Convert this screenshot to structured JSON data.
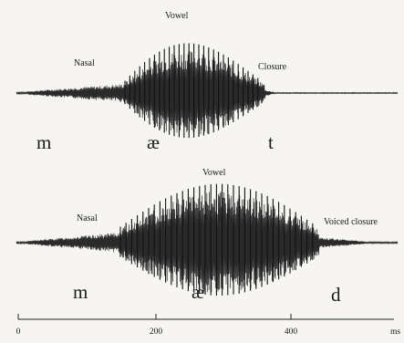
{
  "waveform1": {
    "labels": {
      "nasal": "Nasal",
      "vowel": "Vowel",
      "closure": "Closure"
    },
    "phonemes": [
      "m",
      "æ",
      "t"
    ]
  },
  "waveform2": {
    "labels": {
      "nasal": "Nasal",
      "vowel": "Vowel",
      "closure": "Voiced closure"
    },
    "phonemes": [
      "m",
      "æ",
      "d"
    ]
  },
  "time_axis": {
    "ticks": [
      "0",
      "200",
      "400"
    ],
    "unit": "ms"
  }
}
